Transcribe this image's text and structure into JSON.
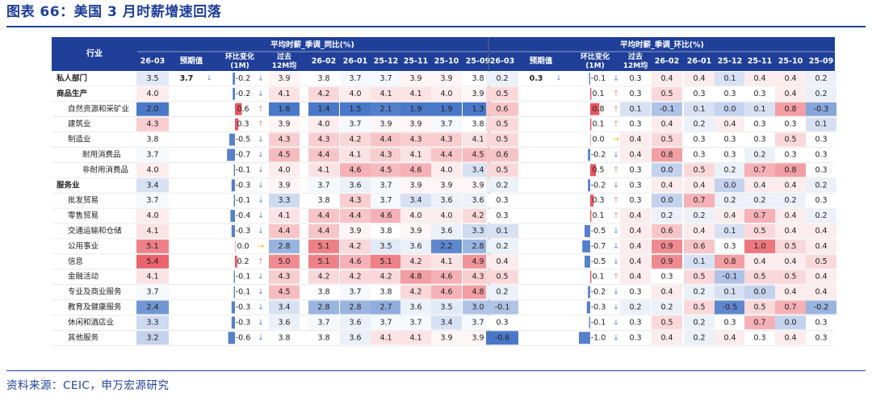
{
  "title": "图表 66：美国 3 月时薪增速回落",
  "source": "资料来源：CEIC，申万宏源研究",
  "colors": {
    "header_bg": "#1f3f99",
    "header_text": "#ffffff",
    "title": "#1f3f99",
    "pos": "#e8444f",
    "neg": "#3b6fc4",
    "bar": "#4472c4",
    "arrow_up": "#f08a8a",
    "arrow_down": "#6b8fd6",
    "arrow_flat": "#f0b400"
  },
  "chart_data": {
    "type": "table",
    "industry_header": "行业",
    "sections": [
      {
        "title": "平均时薪_季调_同比(%)",
        "columns": [
          "26-03",
          "预期值",
          "环比变化(1M)",
          "过去12M均",
          "26-02",
          "26-01",
          "25-12",
          "25-11",
          "25-10",
          "25-09"
        ]
      },
      {
        "title": "平均时薪_季调_环比(%)",
        "columns": [
          "26-03",
          "预期值",
          "环比变化(1M)",
          "过去12M均",
          "26-02",
          "26-01",
          "25-12",
          "25-11",
          "25-10",
          "25-09"
        ]
      }
    ],
    "rows": [
      {
        "name": "私人部门",
        "level": 0,
        "bold": true,
        "yoy": {
          "current": 3.5,
          "expected": "3.7",
          "change": -0.2,
          "arrow": "down",
          "avg12": 3.9,
          "hist": [
            3.8,
            3.7,
            3.7,
            3.9,
            3.9,
            3.8
          ]
        },
        "mom": {
          "current": 0.2,
          "expected": "0.3",
          "change": -0.1,
          "arrow": "down",
          "avg12": 0.3,
          "hist": [
            "0.4",
            "0.4",
            "0.1",
            "0.4",
            "0.4",
            "0.2"
          ]
        }
      },
      {
        "name": "商品生产",
        "level": 0,
        "bold": true,
        "yoy": {
          "current": 4.0,
          "expected": "",
          "change": -0.2,
          "arrow": "down",
          "avg12": 4.1,
          "hist": [
            4.2,
            4.0,
            4.1,
            4.1,
            4.0,
            3.9
          ]
        },
        "mom": {
          "current": 0.5,
          "expected": "",
          "change": 0.1,
          "arrow": "up",
          "avg12": 0.3,
          "hist": [
            "0.5",
            "0.3",
            "0.3",
            "0.3",
            "0.4",
            "0.2"
          ]
        }
      },
      {
        "name": "自然资源和采矿业",
        "level": 1,
        "bold": false,
        "yoy": {
          "current": 2.0,
          "expected": "",
          "change": 0.6,
          "arrow": "up",
          "avg12": 1.6,
          "hist": [
            1.4,
            1.5,
            2.1,
            1.9,
            1.9,
            1.3
          ]
        },
        "mom": {
          "current": 0.6,
          "expected": "",
          "change": 0.8,
          "arrow": "up",
          "avg12": 0.1,
          "hist": [
            "-0.1",
            "0.1",
            "0.0",
            "0.1",
            "0.8",
            "-0.3"
          ]
        }
      },
      {
        "name": "建筑业",
        "level": 1,
        "bold": false,
        "yoy": {
          "current": 4.3,
          "expected": "",
          "change": 0.3,
          "arrow": "up",
          "avg12": 3.9,
          "hist": [
            4.0,
            3.7,
            3.9,
            3.9,
            3.7,
            3.8
          ]
        },
        "mom": {
          "current": 0.5,
          "expected": "",
          "change": 0.1,
          "arrow": "up",
          "avg12": 0.3,
          "hist": [
            "0.4",
            "0.2",
            "0.4",
            "0.3",
            "0.3",
            "0.1"
          ]
        }
      },
      {
        "name": "制造业",
        "level": 1,
        "bold": false,
        "yoy": {
          "current": 3.8,
          "expected": "",
          "change": -0.5,
          "arrow": "down",
          "avg12": 4.3,
          "hist": [
            4.3,
            4.2,
            4.4,
            4.3,
            4.3,
            4.1
          ]
        },
        "mom": {
          "current": 0.5,
          "expected": "",
          "change": 0.0,
          "arrow": "flat",
          "avg12": 0.4,
          "hist": [
            "0.5",
            "0.3",
            "0.3",
            "0.3",
            "0.5",
            "0.3"
          ]
        }
      },
      {
        "name": "耐用消费品",
        "level": 2,
        "bold": false,
        "yoy": {
          "current": 3.7,
          "expected": "",
          "change": -0.7,
          "arrow": "down",
          "avg12": 4.5,
          "hist": [
            4.4,
            4.1,
            4.3,
            4.1,
            4.4,
            4.5
          ]
        },
        "mom": {
          "current": 0.6,
          "expected": "",
          "change": -0.2,
          "arrow": "down",
          "avg12": 0.4,
          "hist": [
            "0.8",
            "0.3",
            "0.3",
            "0.2",
            "0.3",
            "0.3"
          ]
        }
      },
      {
        "name": "非耐用消费品",
        "level": 2,
        "bold": false,
        "yoy": {
          "current": 4.0,
          "expected": "",
          "change": -0.1,
          "arrow": "down",
          "avg12": 4.0,
          "hist": [
            4.1,
            4.6,
            4.5,
            4.6,
            4.0,
            3.4
          ]
        },
        "mom": {
          "current": 0.5,
          "expected": "",
          "change": 0.5,
          "arrow": "up",
          "avg12": 0.3,
          "hist": [
            "0.0",
            "0.5",
            "0.2",
            "0.7",
            "0.8",
            "0.3"
          ]
        }
      },
      {
        "name": "服务业",
        "level": 0,
        "bold": true,
        "yoy": {
          "current": 3.4,
          "expected": "",
          "change": -0.3,
          "arrow": "down",
          "avg12": 3.9,
          "hist": [
            3.7,
            3.6,
            3.7,
            3.9,
            3.9,
            3.9
          ]
        },
        "mom": {
          "current": 0.2,
          "expected": "",
          "change": -0.2,
          "arrow": "down",
          "avg12": 0.3,
          "hist": [
            "0.4",
            "0.4",
            "0.0",
            "0.4",
            "0.4",
            "0.2"
          ]
        }
      },
      {
        "name": "批发贸易",
        "level": 1,
        "bold": false,
        "yoy": {
          "current": 3.7,
          "expected": "",
          "change": -0.1,
          "arrow": "down",
          "avg12": 3.3,
          "hist": [
            3.8,
            4.3,
            3.7,
            3.4,
            3.6,
            3.6
          ]
        },
        "mom": {
          "current": 0.3,
          "expected": "",
          "change": 0.3,
          "arrow": "up",
          "avg12": 0.3,
          "hist": [
            "0.0",
            "0.7",
            "0.2",
            "0.2",
            "0.2",
            "0.3"
          ]
        }
      },
      {
        "name": "零售贸易",
        "level": 1,
        "bold": false,
        "yoy": {
          "current": 4.0,
          "expected": "",
          "change": -0.4,
          "arrow": "down",
          "avg12": 4.1,
          "hist": [
            4.4,
            4.4,
            4.6,
            4.0,
            4.0,
            4.2
          ]
        },
        "mom": {
          "current": 0.3,
          "expected": "",
          "change": 0.1,
          "arrow": "up",
          "avg12": 0.4,
          "hist": [
            "0.2",
            "0.2",
            "0.4",
            "0.7",
            "0.4",
            "0.2"
          ]
        }
      },
      {
        "name": "交通运输和仓储",
        "level": 1,
        "bold": false,
        "yoy": {
          "current": 4.1,
          "expected": "",
          "change": -0.3,
          "arrow": "down",
          "avg12": 4.4,
          "hist": [
            4.4,
            3.9,
            3.8,
            3.9,
            3.6,
            3.3
          ]
        },
        "mom": {
          "current": 0.1,
          "expected": "",
          "change": -0.5,
          "arrow": "down",
          "avg12": 0.4,
          "hist": [
            "0.6",
            "0.4",
            "0.1",
            "0.5",
            "0.4",
            "0.4"
          ]
        }
      },
      {
        "name": "公用事业",
        "level": 1,
        "bold": false,
        "yoy": {
          "current": 5.1,
          "expected": "",
          "change": 0.0,
          "arrow": "flat",
          "avg12": 2.8,
          "hist": [
            5.1,
            4.2,
            3.5,
            3.6,
            2.2,
            2.8
          ]
        },
        "mom": {
          "current": 0.2,
          "expected": "",
          "change": -0.7,
          "arrow": "down",
          "avg12": 0.4,
          "hist": [
            "0.9",
            "0.6",
            "0.3",
            "1.0",
            "0.5",
            "0.4"
          ]
        }
      },
      {
        "name": "信息",
        "level": 1,
        "bold": false,
        "yoy": {
          "current": 5.4,
          "expected": "",
          "change": 0.2,
          "arrow": "up",
          "avg12": 5.0,
          "hist": [
            5.1,
            4.6,
            5.1,
            4.2,
            4.1,
            4.9
          ]
        },
        "mom": {
          "current": 0.4,
          "expected": "",
          "change": -0.5,
          "arrow": "down",
          "avg12": 0.4,
          "hist": [
            "0.9",
            "0.1",
            "0.8",
            "0.4",
            "0.4",
            "0.5"
          ]
        }
      },
      {
        "name": "金融活动",
        "level": 1,
        "bold": false,
        "yoy": {
          "current": 4.1,
          "expected": "",
          "change": -0.1,
          "arrow": "down",
          "avg12": 4.3,
          "hist": [
            4.2,
            4.2,
            4.2,
            4.8,
            4.6,
            4.3
          ]
        },
        "mom": {
          "current": 0.5,
          "expected": "",
          "change": 0.1,
          "arrow": "up",
          "avg12": 0.4,
          "hist": [
            "0.3",
            "0.5",
            "-0.1",
            "0.5",
            "0.5",
            "0.4"
          ]
        }
      },
      {
        "name": "专业及商业服务",
        "level": 1,
        "bold": false,
        "yoy": {
          "current": 3.7,
          "expected": "",
          "change": -0.1,
          "arrow": "down",
          "avg12": 4.5,
          "hist": [
            3.8,
            3.7,
            3.8,
            4.2,
            4.6,
            4.8
          ]
        },
        "mom": {
          "current": 0.2,
          "expected": "",
          "change": -0.2,
          "arrow": "down",
          "avg12": 0.3,
          "hist": [
            "0.4",
            "0.2",
            "0.1",
            "0.0",
            "0.4",
            "0.4"
          ]
        }
      },
      {
        "name": "教育及健康服务",
        "level": 1,
        "bold": false,
        "yoy": {
          "current": 2.4,
          "expected": "",
          "change": -0.3,
          "arrow": "down",
          "avg12": 3.4,
          "hist": [
            2.8,
            2.8,
            2.7,
            3.6,
            3.5,
            3.0
          ]
        },
        "mom": {
          "current": -0.1,
          "expected": "",
          "change": -0.3,
          "arrow": "down",
          "avg12": 0.2,
          "hist": [
            "0.2",
            "0.5",
            "-0.5",
            "0.5",
            "0.7",
            "-0.2"
          ]
        }
      },
      {
        "name": "休闲和酒店业",
        "level": 1,
        "bold": false,
        "yoy": {
          "current": 3.3,
          "expected": "",
          "change": -0.3,
          "arrow": "down",
          "avg12": 3.6,
          "hist": [
            3.7,
            3.6,
            3.7,
            3.7,
            3.4,
            3.7
          ]
        },
        "mom": {
          "current": 0.3,
          "expected": "",
          "change": -0.1,
          "arrow": "down",
          "avg12": 0.3,
          "hist": [
            "0.5",
            "0.2",
            "0.3",
            "0.7",
            "0.0",
            "0.3"
          ]
        }
      },
      {
        "name": "其他服务",
        "level": 1,
        "bold": false,
        "yoy": {
          "current": 3.2,
          "expected": "",
          "change": -0.6,
          "arrow": "down",
          "avg12": 3.8,
          "hist": [
            3.8,
            3.6,
            4.1,
            4.1,
            3.9,
            3.9
          ]
        },
        "mom": {
          "current": -0.6,
          "expected": "",
          "change": -1.0,
          "arrow": "down",
          "avg12": 0.3,
          "hist": [
            "0.4",
            "0.2",
            "0.4",
            "0.3",
            "0.4",
            "0.3"
          ]
        }
      }
    ]
  }
}
